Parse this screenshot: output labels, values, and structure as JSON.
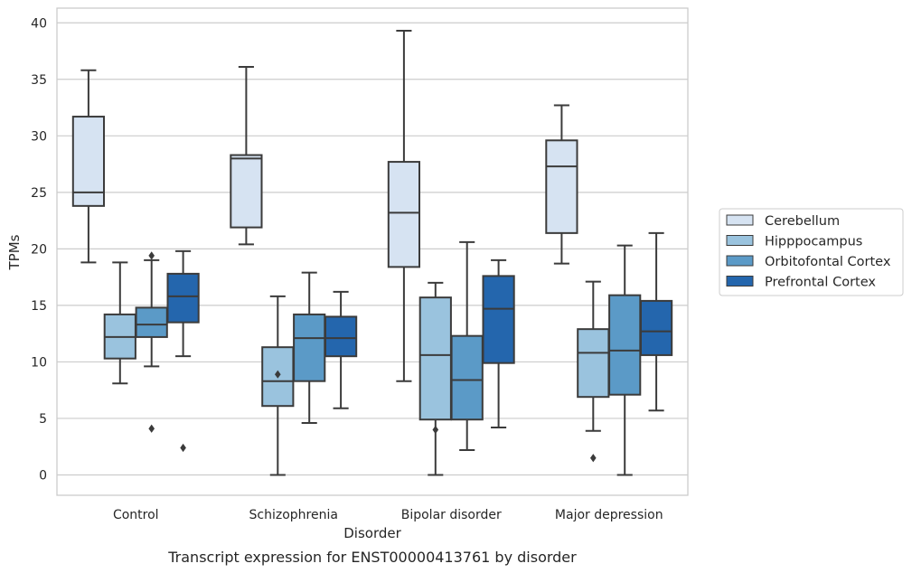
{
  "caption": "Transcript expression for ENST00000413761 by disorder",
  "chart_data": {
    "type": "box",
    "xlabel": "Disorder",
    "ylabel": "TPMs",
    "ylim": [
      -1.8,
      41.3
    ],
    "yticks": [
      0,
      5,
      10,
      15,
      20,
      25,
      30,
      35,
      40
    ],
    "categories": [
      "Control",
      "Schizophrenia",
      "Bipolar disorder",
      "Major depression"
    ],
    "grid": true,
    "legend_position": "right",
    "series": [
      {
        "name": "Cerebellum",
        "color": "#d6e3f2",
        "boxes": [
          {
            "whislo": 18.8,
            "q1": 23.8,
            "med": 25.0,
            "q3": 31.7,
            "whishi": 35.8,
            "fliers": []
          },
          {
            "whislo": 20.4,
            "q1": 21.9,
            "med": 28.0,
            "q3": 28.3,
            "whishi": 36.1,
            "fliers": []
          },
          {
            "whislo": 8.3,
            "q1": 18.4,
            "med": 23.2,
            "q3": 27.7,
            "whishi": 39.3,
            "fliers": []
          },
          {
            "whislo": 18.7,
            "q1": 21.4,
            "med": 27.3,
            "q3": 29.6,
            "whishi": 32.7,
            "fliers": []
          }
        ]
      },
      {
        "name": "Hipppocampus",
        "color": "#9ac3de",
        "boxes": [
          {
            "whislo": 8.1,
            "q1": 10.3,
            "med": 12.2,
            "q3": 14.2,
            "whishi": 18.8,
            "fliers": []
          },
          {
            "whislo": 0.0,
            "q1": 6.1,
            "med": 8.3,
            "q3": 11.3,
            "whishi": 15.8,
            "fliers": [
              8.9
            ]
          },
          {
            "whislo": 0.0,
            "q1": 4.9,
            "med": 10.6,
            "q3": 15.7,
            "whishi": 17.0,
            "fliers": [
              4.0
            ]
          },
          {
            "whislo": 3.9,
            "q1": 6.9,
            "med": 10.8,
            "q3": 12.9,
            "whishi": 17.1,
            "fliers": [
              1.5
            ]
          }
        ]
      },
      {
        "name": "Orbitofontal Cortex",
        "color": "#5b9ac7",
        "boxes": [
          {
            "whislo": 9.6,
            "q1": 12.2,
            "med": 13.3,
            "q3": 14.8,
            "whishi": 19.0,
            "fliers": [
              19.4,
              4.1
            ]
          },
          {
            "whislo": 4.6,
            "q1": 8.3,
            "med": 12.1,
            "q3": 14.2,
            "whishi": 17.9,
            "fliers": []
          },
          {
            "whislo": 2.2,
            "q1": 4.9,
            "med": 8.4,
            "q3": 12.3,
            "whishi": 20.6,
            "fliers": []
          },
          {
            "whislo": 0.0,
            "q1": 7.1,
            "med": 11.0,
            "q3": 15.9,
            "whishi": 20.3,
            "fliers": []
          }
        ]
      },
      {
        "name": "Prefrontal Cortex",
        "color": "#2466ad",
        "boxes": [
          {
            "whislo": 10.5,
            "q1": 13.5,
            "med": 15.8,
            "q3": 17.8,
            "whishi": 19.8,
            "fliers": [
              2.4
            ]
          },
          {
            "whislo": 5.9,
            "q1": 10.5,
            "med": 12.1,
            "q3": 14.0,
            "whishi": 16.2,
            "fliers": []
          },
          {
            "whislo": 4.2,
            "q1": 9.9,
            "med": 14.7,
            "q3": 17.6,
            "whishi": 19.0,
            "fliers": []
          },
          {
            "whislo": 5.7,
            "q1": 10.6,
            "med": 12.7,
            "q3": 15.4,
            "whishi": 21.4,
            "fliers": []
          }
        ]
      }
    ]
  }
}
